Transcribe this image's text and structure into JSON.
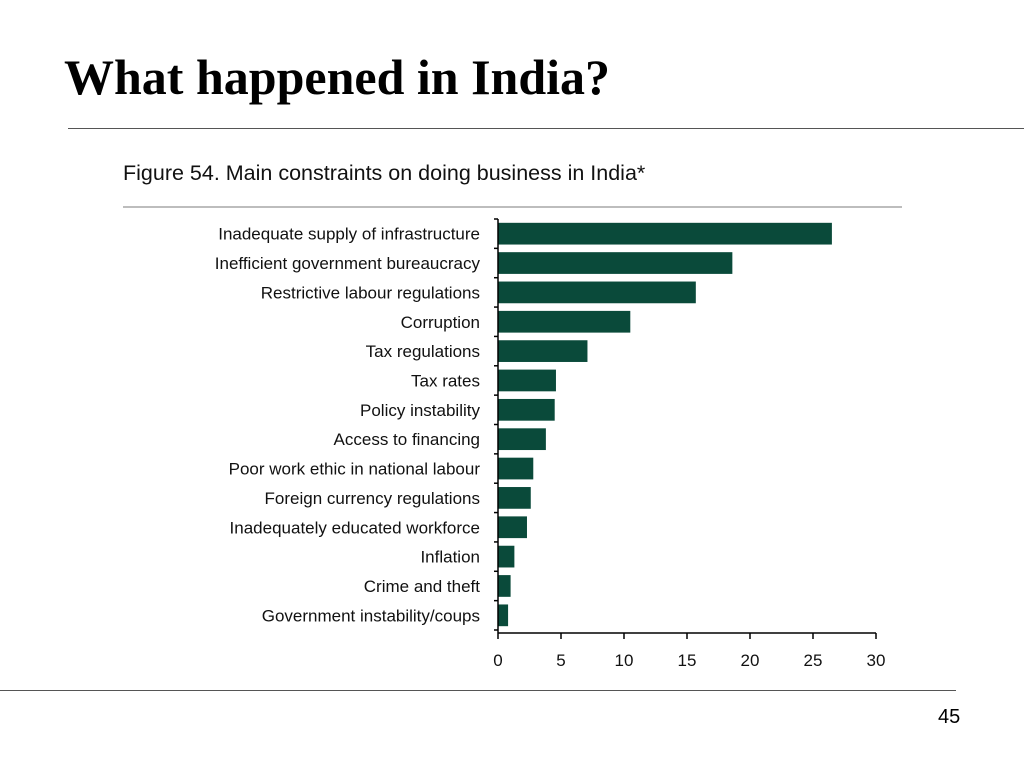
{
  "slide": {
    "title": "What happened in India?",
    "page_number": "45"
  },
  "chart_data": {
    "type": "bar",
    "orientation": "horizontal",
    "title": "Figure 54. Main constraints on doing business in India*",
    "xlabel": "",
    "ylabel": "",
    "xlim": [
      0,
      30
    ],
    "x_ticks": [
      0,
      5,
      10,
      15,
      20,
      25,
      30
    ],
    "grid": false,
    "bar_color": "#0a4a3a",
    "categories": [
      "Inadequate supply of infrastructure",
      "Inefficient government bureaucracy",
      "Restrictive labour regulations",
      "Corruption",
      "Tax regulations",
      "Tax rates",
      "Policy instability",
      "Access to financing",
      "Poor work ethic in national labour",
      "Foreign currency regulations",
      "Inadequately educated workforce",
      "Inflation",
      "Crime and theft",
      "Government instability/coups"
    ],
    "values": [
      26.5,
      18.6,
      15.7,
      10.5,
      7.1,
      4.6,
      4.5,
      3.8,
      2.8,
      2.6,
      2.3,
      1.3,
      1.0,
      0.8
    ]
  }
}
